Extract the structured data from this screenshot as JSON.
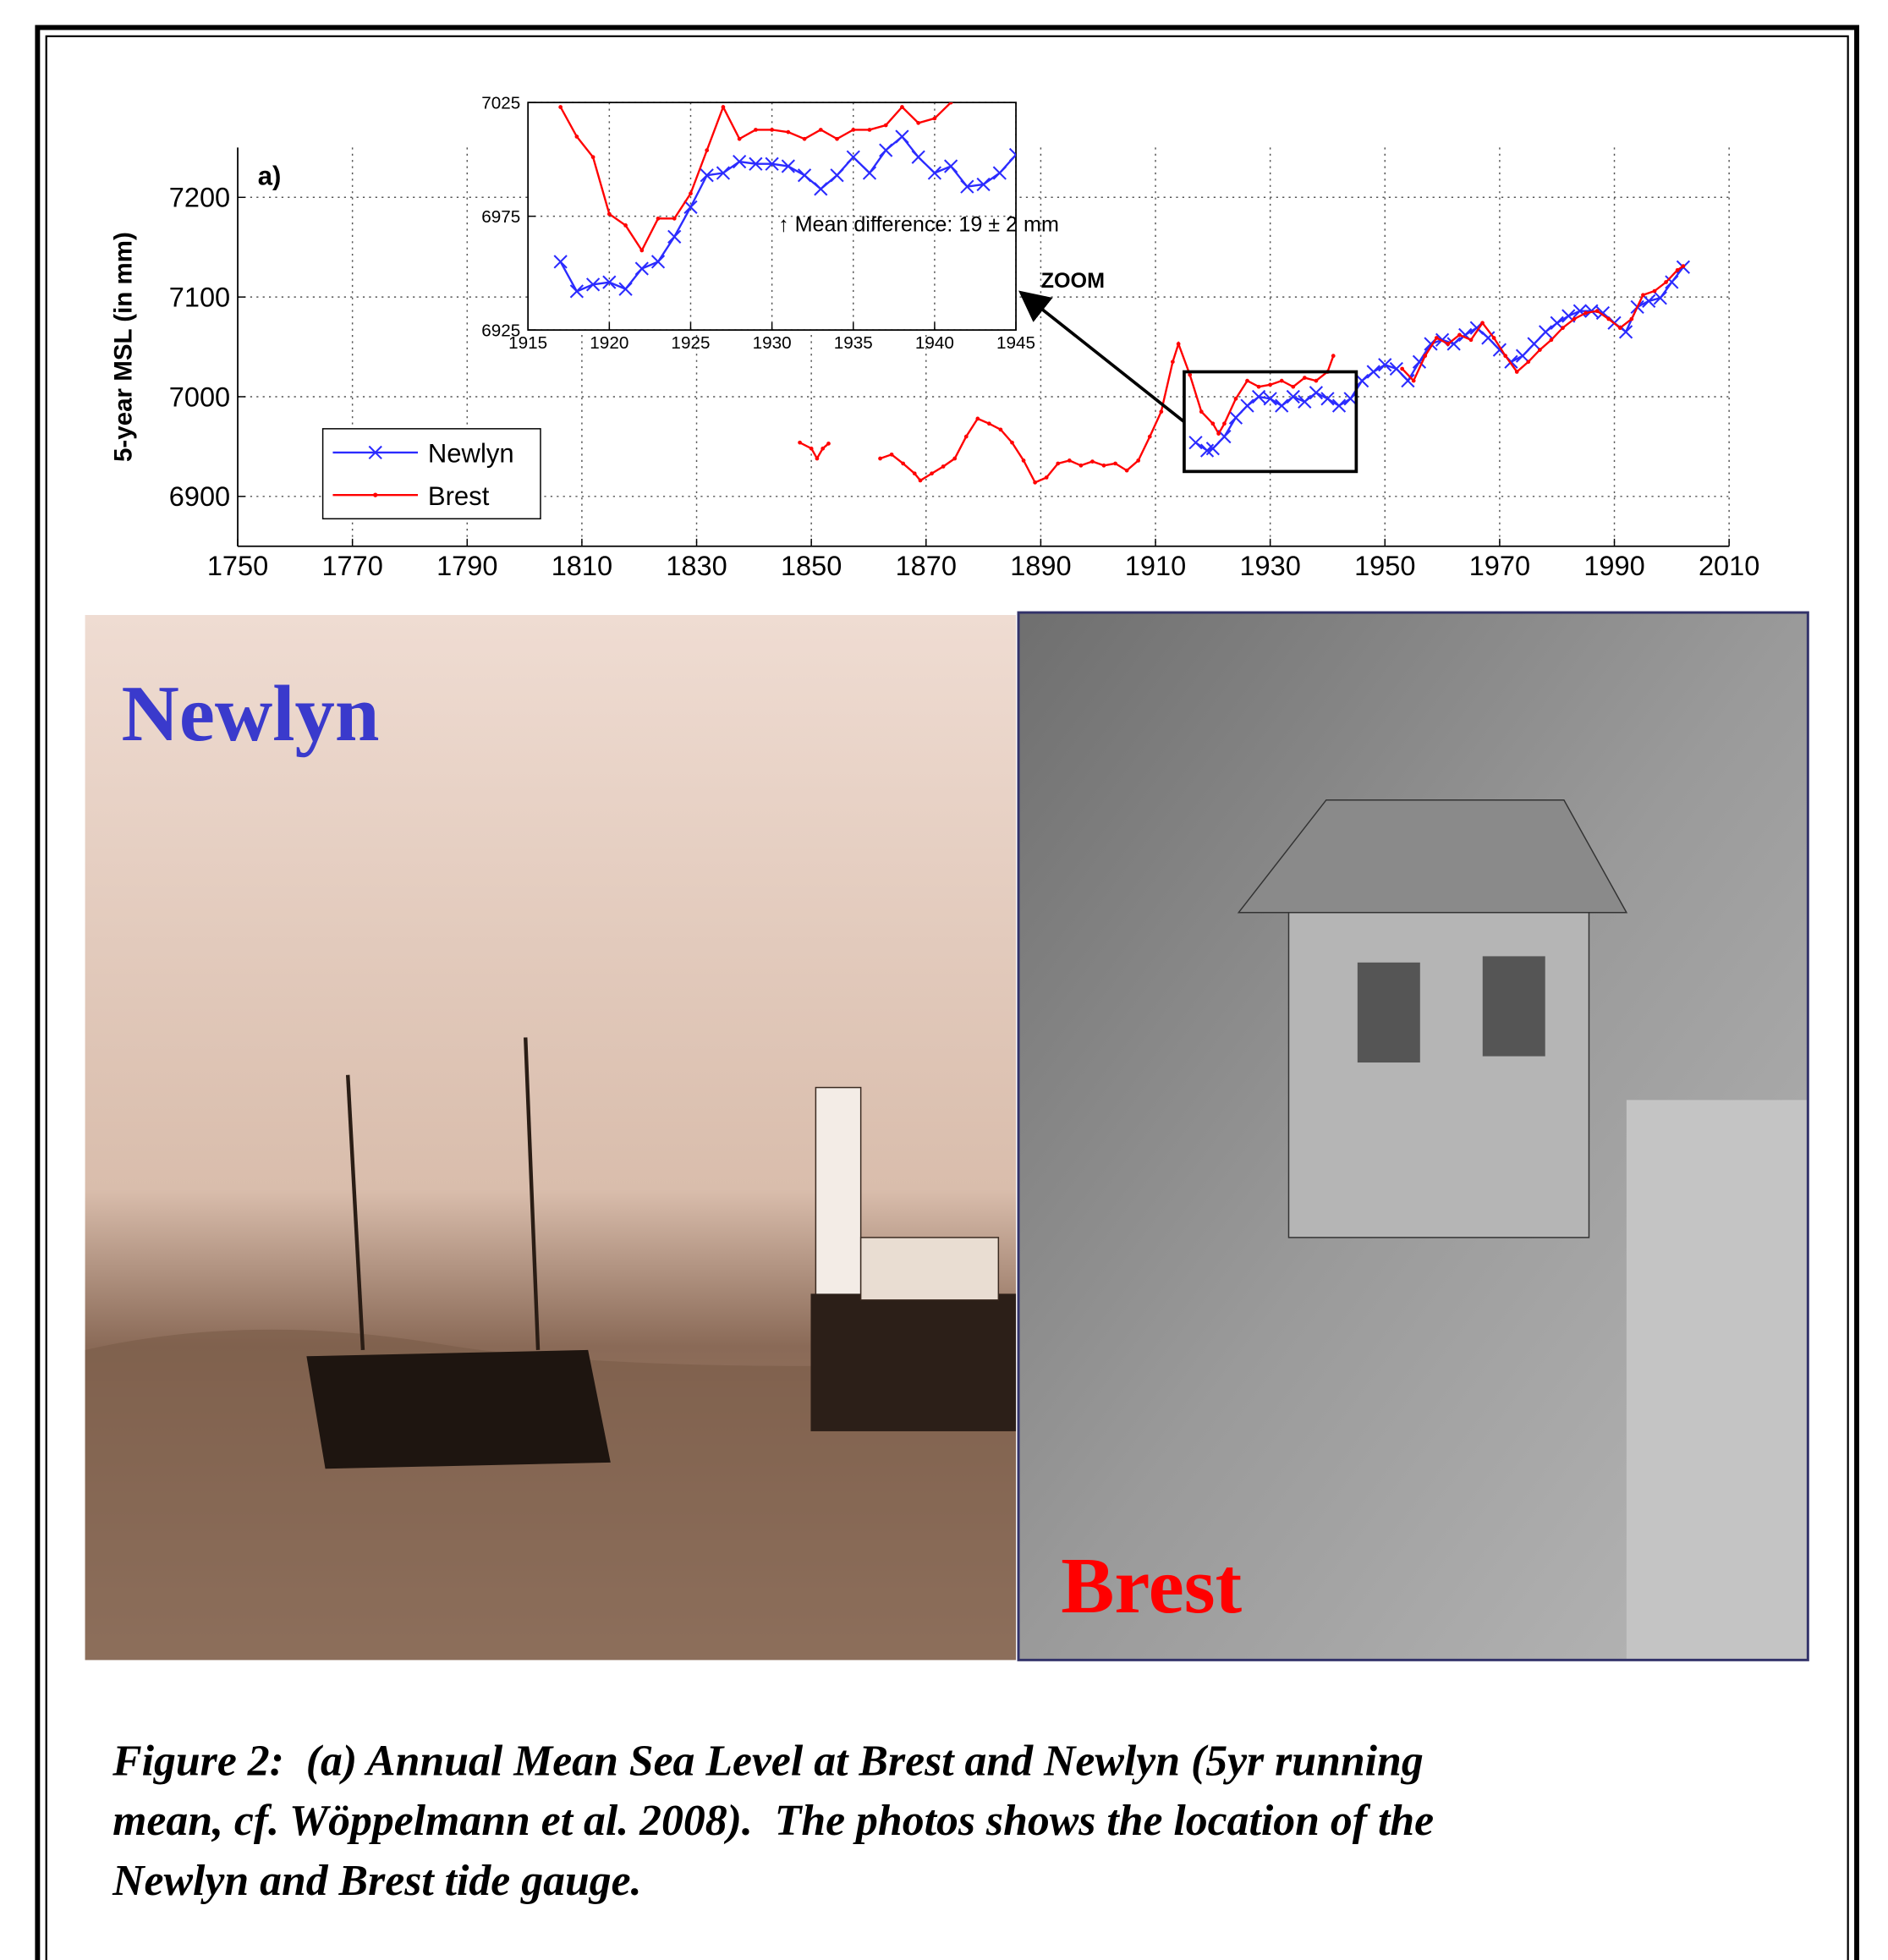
{
  "chart_data": [
    {
      "type": "line",
      "panel_label": "a)",
      "annotation": "ZOOM",
      "ylabel": "5-year MSL (in mm)",
      "xlim": [
        1750,
        2010
      ],
      "xticks": [
        1750,
        1770,
        1790,
        1810,
        1830,
        1850,
        1870,
        1890,
        1910,
        1930,
        1950,
        1970,
        1990,
        2010
      ],
      "ylim": [
        6850,
        7250
      ],
      "yticks": [
        6900,
        7000,
        7100,
        7200
      ],
      "grid": true,
      "legend": "lower left",
      "series": [
        {
          "name": "Newlyn",
          "color": "#2b2bff",
          "marker": "x",
          "x": [
            1917,
            1919,
            1920,
            1922,
            1924,
            1926,
            1928,
            1930,
            1932,
            1934,
            1936,
            1938,
            1940,
            1942,
            1944,
            1946,
            1948,
            1950,
            1952,
            1954,
            1956,
            1958,
            1960,
            1962,
            1964,
            1966,
            1968,
            1970,
            1972,
            1974,
            1976,
            1978,
            1980,
            1982,
            1984,
            1986,
            1988,
            1990,
            1992,
            1994,
            1996,
            1998,
            2000,
            2002
          ],
          "values": [
            6954,
            6946,
            6948,
            6960,
            6979,
            6991,
            7000,
            6998,
            6991,
            7000,
            6995,
            7004,
            6998,
            6991,
            6998,
            7016,
            7025,
            7032,
            7028,
            7016,
            7035,
            7053,
            7057,
            7053,
            7062,
            7069,
            7059,
            7047,
            7035,
            7041,
            7053,
            7065,
            7074,
            7081,
            7086,
            7086,
            7084,
            7074,
            7065,
            7090,
            7096,
            7099,
            7115,
            7130
          ]
        },
        {
          "name": "Brest",
          "color": "#ff0000",
          "marker": ".",
          "x": [
            1848,
            1850,
            1851,
            1852,
            1853,
            1857,
            1862,
            1864,
            1866,
            1868,
            1869,
            1871,
            1873,
            1875,
            1877,
            1879,
            1881,
            1883,
            1885,
            1887,
            1889,
            1891,
            1893,
            1895,
            1897,
            1899,
            1901,
            1903,
            1905,
            1907,
            1909,
            1911,
            1913,
            1914,
            1916,
            1918,
            1920,
            1921,
            1922,
            1924,
            1926,
            1928,
            1930,
            1932,
            1934,
            1936,
            1938,
            1940,
            1941,
            1947,
            1953,
            1955,
            1957,
            1959,
            1961,
            1963,
            1965,
            1967,
            1969,
            1971,
            1973,
            1975,
            1977,
            1979,
            1981,
            1983,
            1985,
            1987,
            1989,
            1991,
            1993,
            1995,
            1997,
            1999,
            2001,
            2002
          ],
          "values": [
            6954,
            6948,
            6938,
            6948,
            6953,
            null,
            6938,
            6942,
            6933,
            6923,
            6916,
            6923,
            6930,
            6938,
            6960,
            6978,
            6973,
            6967,
            6954,
            6936,
            6914,
            6919,
            6933,
            6936,
            6931,
            6935,
            6931,
            6933,
            6926,
            6936,
            6960,
            6985,
            7035,
            7053,
            7022,
            6985,
            6973,
            6963,
            6973,
            6998,
            7016,
            7010,
            7012,
            7016,
            7010,
            7019,
            7016,
            7025,
            7041,
            null,
            7028,
            7016,
            7041,
            7059,
            7053,
            7062,
            7057,
            7074,
            7059,
            7041,
            7025,
            7035,
            7047,
            7057,
            7069,
            7078,
            7084,
            7086,
            7078,
            7069,
            7078,
            7102,
            7106,
            7115,
            7127,
            7131
          ]
        }
      ]
    },
    {
      "type": "line",
      "annotation": "↑ Mean difference: 19 ± 2 mm",
      "xlim": [
        1915,
        1945
      ],
      "xticks": [
        1915,
        1920,
        1925,
        1930,
        1935,
        1940,
        1945
      ],
      "ylim": [
        6925,
        7025
      ],
      "yticks": [
        6925,
        6975,
        7025
      ],
      "grid": true,
      "series": [
        {
          "color": "#2b2bff",
          "marker": "x",
          "x": [
            1917,
            1918,
            1919,
            1920,
            1921,
            1922,
            1923,
            1924,
            1925,
            1926,
            1927,
            1928,
            1929,
            1930,
            1931,
            1932,
            1933,
            1934,
            1935,
            1936,
            1937,
            1938,
            1939,
            1940,
            1941,
            1942,
            1943,
            1944,
            1945
          ],
          "values": [
            6955,
            6942,
            6945,
            6946,
            6943,
            6952,
            6955,
            6966,
            6979,
            6993,
            6994,
            6999,
            6998,
            6998,
            6997,
            6993,
            6987,
            6993,
            7001,
            6994,
            7004,
            7010,
            7001,
            6994,
            6997,
            6988,
            6989,
            6994,
            7002
          ]
        },
        {
          "color": "#ff0000",
          "marker": ".",
          "x": [
            1917,
            1918,
            1919,
            1920,
            1921,
            1922,
            1923,
            1924,
            1925,
            1926,
            1927,
            1928,
            1929,
            1930,
            1931,
            1932,
            1933,
            1934,
            1935,
            1936,
            1937,
            1938,
            1939,
            1940,
            1941
          ],
          "values": [
            7023,
            7010,
            7001,
            6976,
            6971,
            6960,
            6974,
            6974,
            6985,
            7004,
            7023,
            7009,
            7013,
            7013,
            7012,
            7009,
            7013,
            7009,
            7013,
            7013,
            7015,
            7023,
            7016,
            7018,
            7025
          ]
        }
      ]
    }
  ],
  "photos": [
    {
      "label": "Newlyn",
      "color": "#3a3acc"
    },
    {
      "label": "Brest",
      "color": "#ff0000"
    }
  ],
  "caption": {
    "lines": [
      "Figure 2:  (a) Annual Mean Sea Level at Brest and Newlyn (5yr running",
      "mean, cf. Wöppelmann et al. 2008).  The photos shows the location of the",
      "Newlyn and Brest tide gauge."
    ]
  }
}
